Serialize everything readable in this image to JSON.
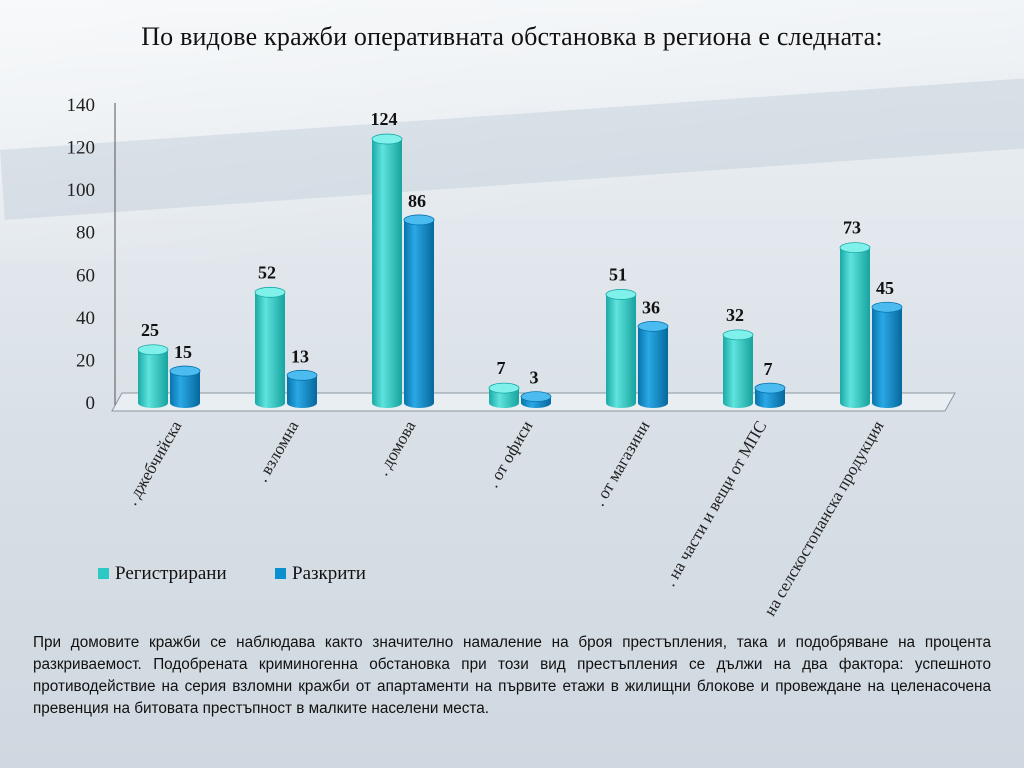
{
  "title": "По видове кражби оперативната обстановка в региона е следната:",
  "chart_data": {
    "type": "bar",
    "categories": [
      ". джебчийска",
      ". взломна",
      ". домова",
      ". от офиси",
      ". от магазини",
      ". на части и вещи от МПС",
      "на селскостопанска продукция"
    ],
    "series": [
      {
        "name": "Регистрирани",
        "values": [
          25,
          52,
          124,
          7,
          51,
          32,
          73
        ],
        "color": "#2cc9c4"
      },
      {
        "name": "Разкрити",
        "values": [
          15,
          13,
          86,
          3,
          36,
          7,
          45
        ],
        "color": "#0a8fcf"
      }
    ],
    "ylim": [
      0,
      140
    ],
    "yticks": [
      0,
      20,
      40,
      60,
      80,
      100,
      120,
      140
    ],
    "legend_position": "bottom-left",
    "grid": false
  },
  "description": "При домовите кражби се наблюдава както значително намаление на броя престъпления, така и подобряване на процента разкриваемост. Подобрената криминогенна обстановка при този вид престъпления се дължи на два фактора: успешното противодействие на серия взломни кражби от апартаменти на първите етажи в жилищни блокове и провеждане на целенасочена превенция на битовата престъпност в малките населени места."
}
